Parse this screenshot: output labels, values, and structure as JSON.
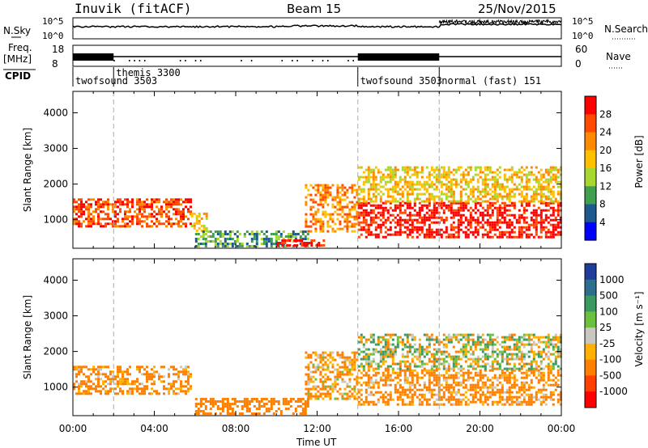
{
  "header": {
    "station": "Inuvik (fitACF)",
    "beam": "Beam 15",
    "date": "25/Nov/2015"
  },
  "strip": {
    "nsky_label": "N.Sky",
    "nsky_ticks": [
      "10^5",
      "10^0"
    ],
    "nsearch_label": "N.Search",
    "nsearch_ticks": [
      "10^5",
      "10^0"
    ],
    "freq_label_1": "Freq.",
    "freq_label_2": "[MHz]",
    "freq_ticks": [
      "18",
      "8"
    ],
    "nave_label": "Nave",
    "nave_ticks": [
      "60",
      "0"
    ],
    "cpid_label": "CPID"
  },
  "cpid_segments": [
    {
      "name": "twofsound 3503",
      "start": "00:00"
    },
    {
      "name": "themis 3300",
      "start": "02:00"
    },
    {
      "name": "twofsound 3503",
      "start": "14:00"
    },
    {
      "name": "normal (fast) 151",
      "start": "18:00"
    }
  ],
  "time_axis": {
    "label": "Time UT",
    "ticks": [
      "00:00",
      "04:00",
      "08:00",
      "12:00",
      "16:00",
      "20:00",
      "00:00"
    ],
    "range_hours": [
      0,
      24
    ]
  },
  "panels": [
    {
      "ylabel": "Slant Range [km]",
      "yticks": [
        "1000",
        "2000",
        "3000",
        "4000"
      ],
      "yrange": [
        200,
        4600
      ],
      "cbar_label": "Power [dB]",
      "cbar_ticks": [
        "28",
        "24",
        "20",
        "16",
        "12",
        "8",
        "4"
      ],
      "cbar_colors": [
        "#ff0000",
        "#ff4a00",
        "#ff8a00",
        "#ffc000",
        "#a8d830",
        "#40a050",
        "#1e5a90",
        "#0000ff"
      ]
    },
    {
      "ylabel": "Slant Range [km]",
      "yticks": [
        "1000",
        "2000",
        "3000",
        "4000"
      ],
      "yrange": [
        200,
        4600
      ],
      "cbar_label": "Velocity [m s⁻¹]",
      "cbar_ticks": [
        "1000",
        "500",
        "100",
        "25",
        "-25",
        "-100",
        "-500",
        "-1000"
      ],
      "cbar_colors": [
        "#1e3c9c",
        "#2c6e8e",
        "#3a9a60",
        "#6cc040",
        "#c8c8c0",
        "#ffb000",
        "#ff8000",
        "#ff4000",
        "#ff0000"
      ]
    }
  ],
  "chart_data": [
    {
      "type": "heatmap",
      "title": "Power [dB]",
      "xlabel": "Time UT",
      "ylabel": "Slant Range [km]",
      "xlim_hours": [
        0,
        24
      ],
      "ylim": [
        200,
        4600
      ],
      "colorbar_range": [
        0,
        30
      ],
      "echo_regions": [
        {
          "t0": 0.0,
          "t1": 5.8,
          "r0": 800,
          "r1": 1600,
          "value_db": 24
        },
        {
          "t0": 5.8,
          "t1": 6.6,
          "r0": 700,
          "r1": 1200,
          "value_db": 14
        },
        {
          "t0": 6.0,
          "t1": 11.5,
          "r0": 250,
          "r1": 700,
          "value_db": 8
        },
        {
          "t0": 10.0,
          "t1": 12.3,
          "r0": 250,
          "r1": 450,
          "value_db": 28
        },
        {
          "t0": 11.4,
          "t1": 14.0,
          "r0": 700,
          "r1": 2000,
          "value_db": 20
        },
        {
          "t0": 14.0,
          "t1": 24.0,
          "r0": 500,
          "r1": 1500,
          "value_db": 28
        },
        {
          "t0": 14.0,
          "t1": 24.0,
          "r0": 1500,
          "r1": 2500,
          "value_db": 16
        }
      ]
    },
    {
      "type": "heatmap",
      "title": "Velocity [m s⁻¹]",
      "xlabel": "Time UT",
      "ylabel": "Slant Range [km]",
      "xlim_hours": [
        0,
        24
      ],
      "ylim": [
        200,
        4600
      ],
      "colorbar_range": [
        -1000,
        1000
      ],
      "echo_regions": [
        {
          "t0": 0.0,
          "t1": 5.8,
          "r0": 800,
          "r1": 1600,
          "value_ms": -200
        },
        {
          "t0": 6.0,
          "t1": 11.5,
          "r0": 250,
          "r1": 700,
          "value_ms": -300
        },
        {
          "t0": 11.4,
          "t1": 14.0,
          "r0": 700,
          "r1": 2000,
          "value_ms": -150
        },
        {
          "t0": 14.0,
          "t1": 24.0,
          "r0": 500,
          "r1": 1500,
          "value_ms": -200
        },
        {
          "t0": 14.0,
          "t1": 24.0,
          "r0": 1500,
          "r1": 2500,
          "value_ms": 0
        }
      ]
    }
  ]
}
